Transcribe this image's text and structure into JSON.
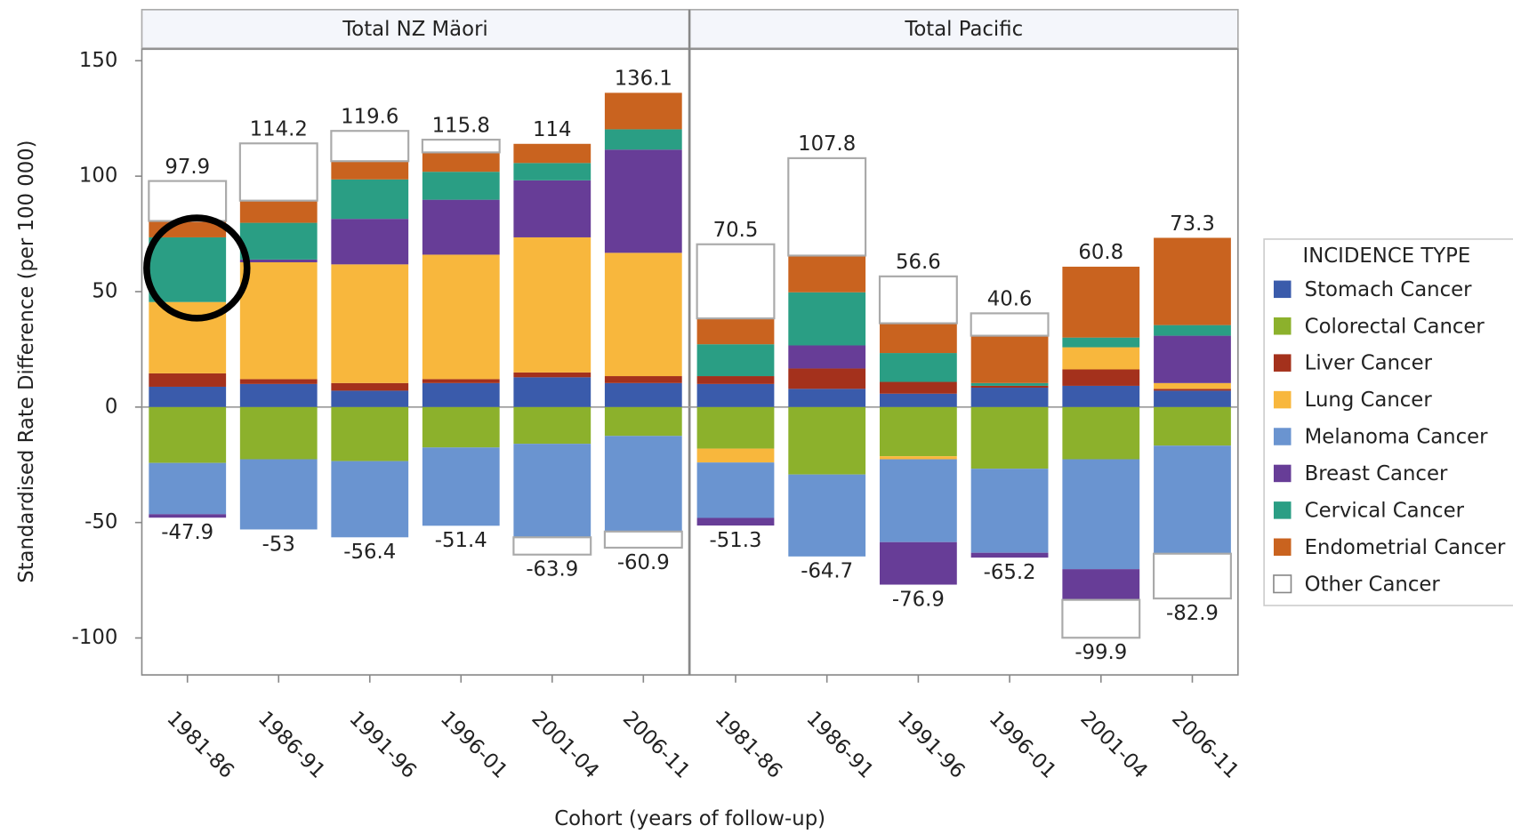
{
  "chart_data": {
    "type": "bar",
    "stacked": true,
    "panels": [
      "Total NZ Mäori",
      "Total Pacific"
    ],
    "categories": [
      "1981-86",
      "1986-91",
      "1991-96",
      "1996-01",
      "2001-04",
      "2006-11"
    ],
    "ylabel": "Standardised Rate Difference (per 100 000)",
    "xlabel": "Cohort (years of follow-up)",
    "legend_title": "INCIDENCE TYPE",
    "legend": "right",
    "ylim": [
      -116,
      155
    ],
    "yticks": [
      -100,
      -50,
      0,
      50,
      100,
      150
    ],
    "series": [
      {
        "name": "Stomach Cancer",
        "color": "#3a5bab",
        "values": [
          [
            8.8,
            10,
            7.1,
            10.4,
            12.9,
            10.4
          ],
          [
            10,
            7.9,
            5.8,
            8.4,
            9.2,
            7.1
          ]
        ]
      },
      {
        "name": "Colorectal Cancer",
        "color": "#8cb12c",
        "values": [
          [
            -24.2,
            -22.6,
            -23.4,
            -17.5,
            -15.9,
            -12.5
          ],
          [
            -18,
            -29.2,
            -21.3,
            -26.7,
            -22.6,
            -16.7
          ]
        ]
      },
      {
        "name": "Liver Cancer",
        "color": "#a4311c",
        "values": [
          [
            5.8,
            2.1,
            3.3,
            1.7,
            2.1,
            3
          ],
          [
            3.4,
            8.8,
            5.1,
            0.8,
            7.1,
            0.8
          ]
        ]
      },
      {
        "name": "Lung Cancer",
        "color": "#f8b73d",
        "values": [
          [
            30.9,
            50.6,
            51.4,
            53.9,
            58.5,
            53.4
          ],
          [
            -6,
            0,
            -1.3,
            0,
            9.6,
            2.5
          ]
        ]
      },
      {
        "name": "Melanoma Cancer",
        "color": "#6a94d0",
        "values": [
          [
            -22.2,
            -30.4,
            -33,
            -33.9,
            -40.5,
            -41.4
          ],
          [
            -24,
            -35.5,
            -35.9,
            -36.4,
            -47.6,
            -46.8
          ]
        ]
      },
      {
        "name": "Breast Cancer",
        "color": "#673d97",
        "values": [
          [
            -1.5,
            1.2,
            19.7,
            23.8,
            24.7,
            44.7
          ],
          [
            -3.3,
            10,
            -18.4,
            -2.1,
            -13.3,
            20.5
          ]
        ]
      },
      {
        "name": "Cervical Cancer",
        "color": "#2a9e84",
        "values": [
          [
            28,
            15.9,
            17.1,
            12.1,
            7.5,
            8.8
          ],
          [
            13.8,
            23,
            12.5,
            1.2,
            4.2,
            4.6
          ]
        ]
      },
      {
        "name": "Endometrial Cancer",
        "color": "#c9631f",
        "values": [
          [
            7.1,
            9.6,
            7.9,
            8.4,
            8.3,
            15.8
          ],
          [
            11.2,
            15.9,
            12.9,
            20.5,
            30.7,
            37.8
          ]
        ]
      },
      {
        "name": "Other Cancer",
        "color": "#ffffff",
        "values": [
          [
            17.3,
            24.8,
            13.1,
            5.5,
            -7.5,
            -7
          ],
          [
            32.1,
            42.2,
            20.3,
            9.7,
            -16.4,
            -19.4
          ]
        ]
      }
    ],
    "positive_totals": [
      [
        97.9,
        114.2,
        119.6,
        115.8,
        114,
        136.1
      ],
      [
        70.5,
        107.8,
        56.6,
        40.6,
        60.8,
        73.3
      ]
    ],
    "negative_totals": [
      [
        -47.9,
        -53,
        -56.4,
        -51.4,
        -63.9,
        -60.9
      ],
      [
        -51.3,
        -64.7,
        -76.9,
        -65.2,
        -99.9,
        -82.9
      ]
    ]
  }
}
